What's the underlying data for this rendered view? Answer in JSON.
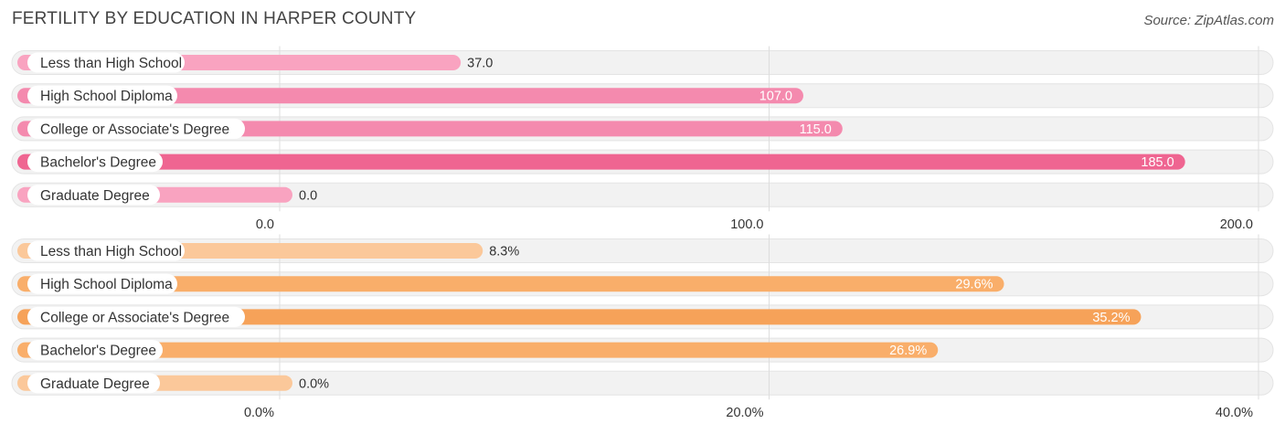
{
  "title": "FERTILITY BY EDUCATION IN HARPER COUNTY",
  "source": "Source: ZipAtlas.com",
  "chart_data": [
    {
      "type": "bar",
      "orientation": "horizontal",
      "categories": [
        "Less than High School",
        "High School Diploma",
        "College or Associate's Degree",
        "Bachelor's Degree",
        "Graduate Degree"
      ],
      "values": [
        37.0,
        107.0,
        115.0,
        185.0,
        0.0
      ],
      "value_labels": [
        "37.0",
        "107.0",
        "115.0",
        "185.0",
        "0.0"
      ],
      "xlim": [
        0,
        200
      ],
      "ticks": [
        0,
        100,
        200
      ],
      "tick_labels": [
        "0.0",
        "100.0",
        "200.0"
      ],
      "colors": [
        "#f9a3c0",
        "#f48aae",
        "#f48aae",
        "#ef6591",
        "#f9a3c0"
      ],
      "grid": true
    },
    {
      "type": "bar",
      "orientation": "horizontal",
      "categories": [
        "Less than High School",
        "High School Diploma",
        "College or Associate's Degree",
        "Bachelor's Degree",
        "Graduate Degree"
      ],
      "values": [
        8.3,
        29.6,
        35.2,
        26.9,
        0.0
      ],
      "value_labels": [
        "8.3%",
        "29.6%",
        "35.2%",
        "26.9%",
        "0.0%"
      ],
      "xlim": [
        0,
        40
      ],
      "ticks": [
        0,
        20,
        40
      ],
      "tick_labels": [
        "0.0%",
        "20.0%",
        "40.0%"
      ],
      "colors": [
        "#fbc89a",
        "#f9ae6a",
        "#f6a259",
        "#f9ae6a",
        "#fbc89a"
      ],
      "grid": true
    }
  ]
}
